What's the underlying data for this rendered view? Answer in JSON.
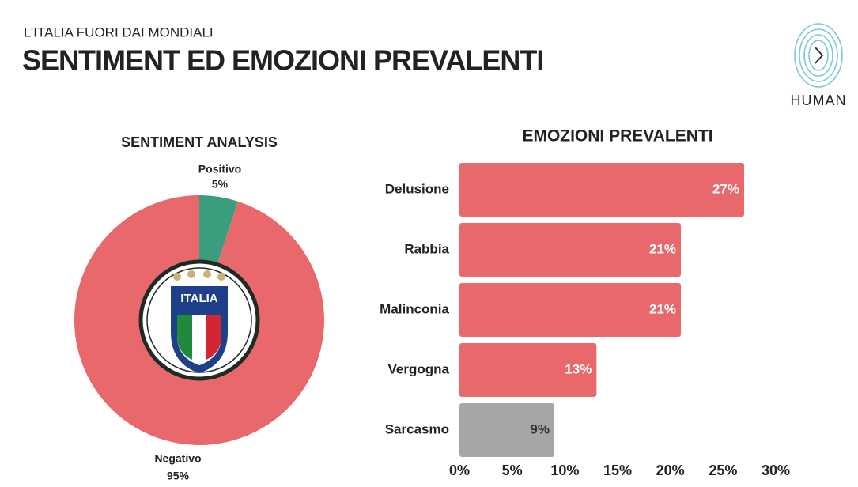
{
  "header": {
    "kicker": "L’ITALIA FUORI DAI MONDIALI",
    "title": "SENTIMENT ED EMOZIONI PREVALENTI",
    "logo": "HUMAN",
    "badge": "ITALIA"
  },
  "chart_data": [
    {
      "type": "donut",
      "title": "SENTIMENT ANALYSIS",
      "categories": [
        "Positivo",
        "Negativo"
      ],
      "values": [
        5,
        95
      ],
      "value_labels": [
        "5%",
        "95%"
      ],
      "colors": [
        "#3a9e7e",
        "#e8686c"
      ]
    },
    {
      "type": "hbar",
      "title": "EMOZIONI PREVALENTI",
      "categories": [
        "Delusione",
        "Rabbia",
        "Malinconia",
        "Vergogna",
        "Sarcasmo"
      ],
      "values": [
        27,
        21,
        21,
        13,
        9
      ],
      "value_labels": [
        "27%",
        "21%",
        "21%",
        "13%",
        "9%"
      ],
      "colors": [
        "#e8686c",
        "#e8686c",
        "#e8686c",
        "#e8686c",
        "#a6a6a6"
      ],
      "value_label_colors": [
        "#ffffff",
        "#ffffff",
        "#ffffff",
        "#ffffff",
        "#333333"
      ],
      "xlim": [
        0,
        30
      ],
      "xticks": [
        {
          "value": 0,
          "label": "0%"
        },
        {
          "value": 5,
          "label": "5%"
        },
        {
          "value": 10,
          "label": "10%"
        },
        {
          "value": 15,
          "label": "15%"
        },
        {
          "value": 20,
          "label": "20%"
        },
        {
          "value": 25,
          "label": "25%"
        },
        {
          "value": 30,
          "label": "30%"
        }
      ]
    }
  ]
}
